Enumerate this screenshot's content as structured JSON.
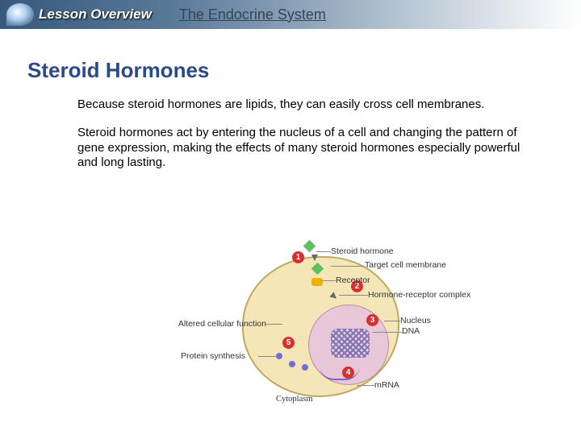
{
  "header": {
    "overview": "Lesson Overview",
    "title": "The Endocrine System"
  },
  "section": {
    "title": "Steroid Hormones"
  },
  "para1": "Because steroid hormones are lipids, they can easily cross cell membranes.",
  "para2": "Steroid hormones act by entering the nucleus of a cell and changing the pattern of gene expression, making the effects of many steroid hormones especially powerful and long lasting.",
  "diagram": {
    "markers": {
      "n1": "1",
      "n2": "2",
      "n3": "3",
      "n4": "4",
      "n5": "5"
    },
    "labels": {
      "steroid": "Steroid hormone",
      "target": "Target cell\nmembrane",
      "receptor": "Receptor",
      "complex": "Hormone-receptor complex",
      "nucleus": "Nucleus",
      "dna": "DNA",
      "altered": "Altered cellular function",
      "protein": "Protein synthesis",
      "cytoplasm": "Cytoplasm",
      "mrna": "mRNA"
    },
    "colors": {
      "cell_fill": "#f5e6b8",
      "cell_border": "#c0a860",
      "nucleus_fill": "#e8c8d8",
      "marker_bg": "#d83030",
      "hormone": "#60c060",
      "receptor": "#f0b000",
      "ribosome": "#7070d0"
    }
  }
}
